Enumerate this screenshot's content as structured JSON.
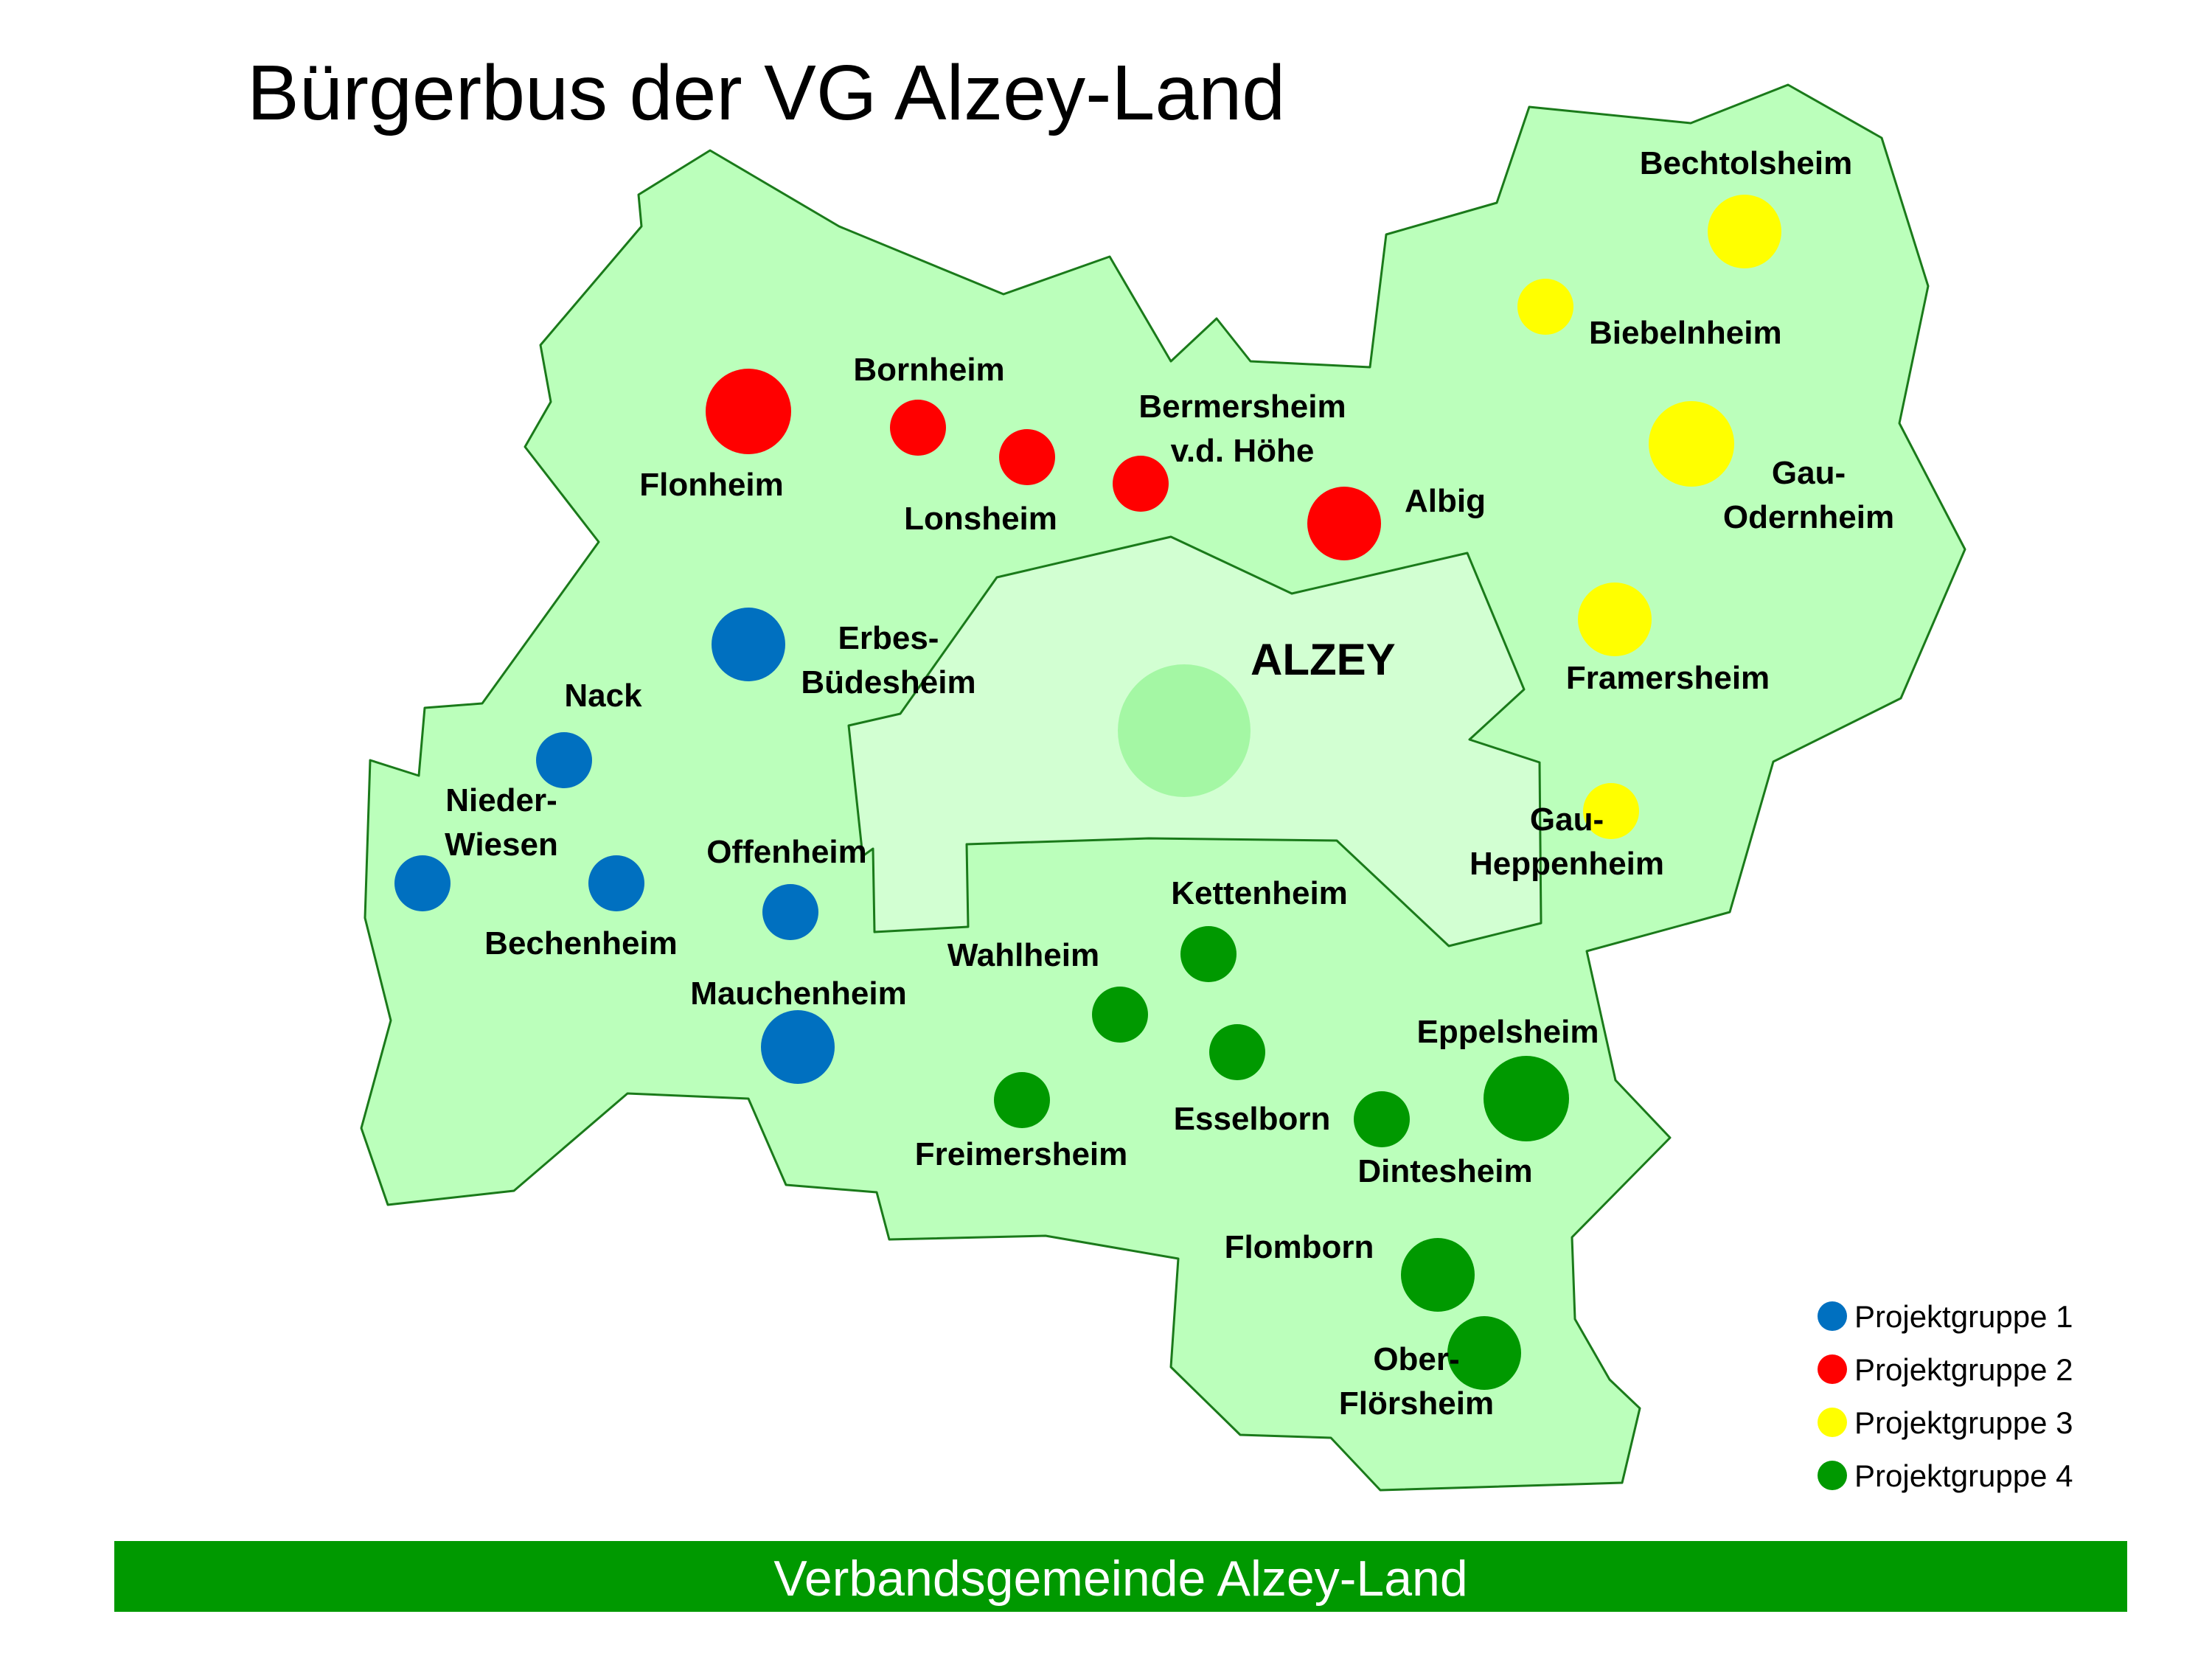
{
  "title": "Bürgerbus der VG Alzey-Land",
  "footer": "Verbandsgemeinde Alzey-Land",
  "colors": {
    "region_fill": "#bbffbb",
    "region_stroke": "#1a7a1a",
    "city_fill": "#d2ffd2",
    "city_marker": "#a4f7a4",
    "footer_bar": "#009900",
    "group1": "#0070c0",
    "group2": "#ff0000",
    "group3": "#ffff00",
    "group4": "#009900"
  },
  "city": {
    "label": "ALZEY"
  },
  "legend": [
    {
      "group": 1,
      "label": "Projektgruppe 1"
    },
    {
      "group": 2,
      "label": "Projektgruppe 2"
    },
    {
      "group": 3,
      "label": "Projektgruppe 3"
    },
    {
      "group": 4,
      "label": "Projektgruppe 4"
    }
  ],
  "places": [
    {
      "id": "flonheim",
      "lines": [
        "Flonheim"
      ],
      "group": 2,
      "size": "large"
    },
    {
      "id": "bornheim",
      "lines": [
        "Bornheim"
      ],
      "group": 2,
      "size": "small"
    },
    {
      "id": "lonsheim",
      "lines": [
        "Lonsheim"
      ],
      "group": 2,
      "size": "small"
    },
    {
      "id": "bermersheim",
      "lines": [
        "Bermersheim",
        "v.d. Höhe"
      ],
      "group": 2,
      "size": "small"
    },
    {
      "id": "albig",
      "lines": [
        "Albig"
      ],
      "group": 2,
      "size": "medium"
    },
    {
      "id": "bechtolsheim",
      "lines": [
        "Bechtolsheim"
      ],
      "group": 3,
      "size": "medium"
    },
    {
      "id": "biebelnheim",
      "lines": [
        "Biebelnheim"
      ],
      "group": 3,
      "size": "small"
    },
    {
      "id": "gau-odernheim",
      "lines": [
        "Gau-",
        "Odernheim"
      ],
      "group": 3,
      "size": "large"
    },
    {
      "id": "framersheim",
      "lines": [
        "Framersheim"
      ],
      "group": 3,
      "size": "medium"
    },
    {
      "id": "gau-heppenheim",
      "lines": [
        "Gau-",
        "Heppenheim"
      ],
      "group": 3,
      "size": "small"
    },
    {
      "id": "erbes-buedesheim",
      "lines": [
        "Erbes-",
        "Büdesheim"
      ],
      "group": 1,
      "size": "medium"
    },
    {
      "id": "nack",
      "lines": [
        "Nack"
      ],
      "group": 1,
      "size": "small"
    },
    {
      "id": "nieder-wiesen",
      "lines": [
        "Nieder-",
        "Wiesen"
      ],
      "group": 1,
      "size": "small"
    },
    {
      "id": "bechenheim",
      "lines": [
        "Bechenheim"
      ],
      "group": 1,
      "size": "small"
    },
    {
      "id": "offenheim",
      "lines": [
        "Offenheim"
      ],
      "group": 1,
      "size": "small"
    },
    {
      "id": "mauchenheim",
      "lines": [
        "Mauchenheim"
      ],
      "group": 1,
      "size": "medium"
    },
    {
      "id": "kettenheim",
      "lines": [
        "Kettenheim"
      ],
      "group": 4,
      "size": "small"
    },
    {
      "id": "wahlheim",
      "lines": [
        "Wahlheim"
      ],
      "group": 4,
      "size": "small"
    },
    {
      "id": "esselborn",
      "lines": [
        "Esselborn"
      ],
      "group": 4,
      "size": "small"
    },
    {
      "id": "freimersheim",
      "lines": [
        "Freimersheim"
      ],
      "group": 4,
      "size": "small"
    },
    {
      "id": "eppelsheim",
      "lines": [
        "Eppelsheim"
      ],
      "group": 4,
      "size": "large"
    },
    {
      "id": "dintesheim",
      "lines": [
        "Dintesheim"
      ],
      "group": 4,
      "size": "small"
    },
    {
      "id": "flomborn",
      "lines": [
        "Flomborn"
      ],
      "group": 4,
      "size": "medium"
    },
    {
      "id": "ober-floersheim",
      "lines": [
        "Ober-",
        "Flörsheim"
      ],
      "group": 4,
      "size": "medium"
    }
  ]
}
